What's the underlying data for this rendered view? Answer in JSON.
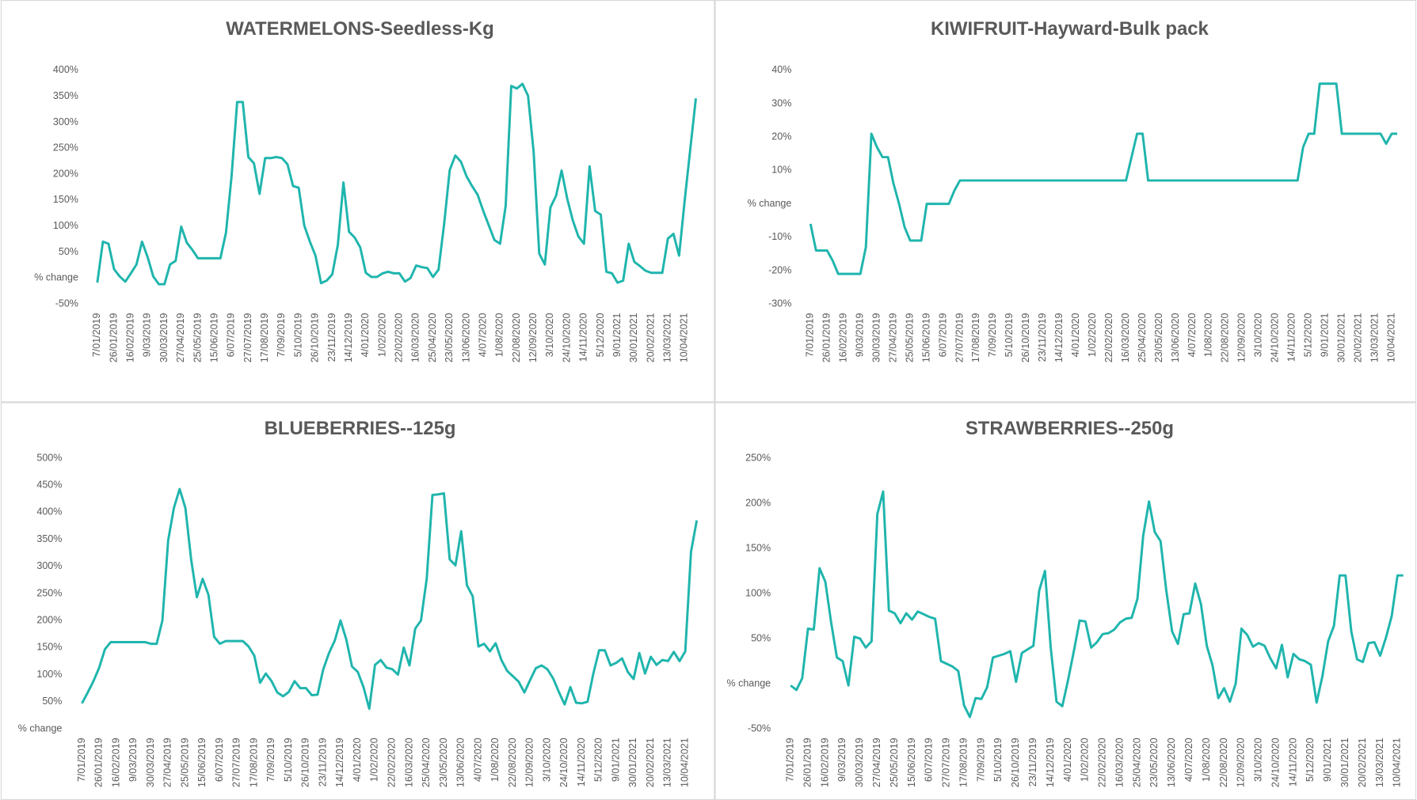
{
  "chart_data": [
    {
      "type": "line",
      "title": "WATERMELONS-Seedless-Kg",
      "grid": false,
      "color": "#1fb5ad",
      "categories": [
        "7/01/2019",
        null,
        null,
        "26/01/2019",
        null,
        null,
        "16/02/2019",
        null,
        null,
        "9/03/2019",
        null,
        null,
        "30/03/2019",
        null,
        null,
        "27/04/2019",
        null,
        null,
        "25/05/2019",
        null,
        null,
        "15/06/2019",
        null,
        null,
        "6/07/2019",
        null,
        null,
        "27/07/2019",
        null,
        null,
        "17/08/2019",
        null,
        null,
        "7/09/2019",
        null,
        null,
        "5/10/2019",
        null,
        null,
        "26/10/2019",
        null,
        null,
        "23/11/2019",
        null,
        null,
        "14/12/2019",
        null,
        null,
        "4/01/2020",
        null,
        null,
        "1/02/2020",
        null,
        null,
        "22/02/2020",
        null,
        null,
        "16/03/2020",
        null,
        null,
        "25/04/2020",
        null,
        null,
        "23/05/2020",
        null,
        null,
        "13/06/2020",
        null,
        null,
        "4/07/2020",
        null,
        null,
        "1/08/2020",
        null,
        null,
        "22/08/2020",
        null,
        null,
        "12/09/2020",
        null,
        null,
        "3/10/2020",
        null,
        null,
        "24/10/2020",
        null,
        null,
        "14/11/2020",
        null,
        null,
        "5/12/2020",
        null,
        null,
        "9/01/2021",
        null,
        null,
        "30/01/2021",
        null,
        null,
        "20/02/2021",
        null,
        null,
        "13/03/2021",
        null,
        null,
        "10/04/2021",
        null,
        null
      ],
      "values": [
        -9,
        70,
        66,
        17,
        3,
        -7,
        9,
        26,
        70,
        40,
        3,
        -12,
        -12,
        26,
        33,
        99,
        68,
        54,
        38,
        38,
        38,
        38,
        38,
        87,
        196,
        339,
        339,
        233,
        221,
        162,
        231,
        231,
        233,
        231,
        219,
        177,
        174,
        101,
        70,
        43,
        -10,
        -5,
        7,
        64,
        184,
        89,
        78,
        59,
        10,
        2,
        2,
        9,
        12,
        9,
        9,
        -7,
        0,
        24,
        21,
        19,
        2,
        16,
        104,
        208,
        236,
        224,
        196,
        177,
        160,
        129,
        101,
        73,
        66,
        139,
        370,
        365,
        374,
        351,
        243,
        47,
        26,
        136,
        158,
        207,
        153,
        111,
        80,
        66,
        215,
        129,
        122,
        12,
        9,
        -9,
        -5,
        66,
        31,
        23,
        14,
        10,
        10,
        10,
        76,
        85,
        43,
        149,
        248,
        346
      ],
      "ylim": [
        -50,
        400
      ],
      "yticks": [
        {
          "value": -50,
          "label": "-50%"
        },
        {
          "value": 0,
          "label": "% change"
        },
        {
          "value": 50,
          "label": "50%"
        },
        {
          "value": 100,
          "label": "100%"
        },
        {
          "value": 150,
          "label": "150%"
        },
        {
          "value": 200,
          "label": "200%"
        },
        {
          "value": 250,
          "label": "250%"
        },
        {
          "value": 300,
          "label": "300%"
        },
        {
          "value": 350,
          "label": "350%"
        },
        {
          "value": 400,
          "label": "400%"
        }
      ]
    },
    {
      "type": "line",
      "title": "KIWIFRUIT-Hayward-Bulk pack",
      "grid": false,
      "color": "#1fb5ad",
      "categories": [
        "7/01/2019",
        null,
        null,
        "26/01/2019",
        null,
        null,
        "16/02/2019",
        null,
        null,
        "9/03/2019",
        null,
        null,
        "30/03/2019",
        null,
        null,
        "27/04/2019",
        null,
        null,
        "25/05/2019",
        null,
        null,
        "15/06/2019",
        null,
        null,
        "6/07/2019",
        null,
        null,
        "27/07/2019",
        null,
        null,
        "17/08/2019",
        null,
        null,
        "7/09/2019",
        null,
        null,
        "5/10/2019",
        null,
        null,
        "26/10/2019",
        null,
        null,
        "23/11/2019",
        null,
        null,
        "14/12/2019",
        null,
        null,
        "4/01/2020",
        null,
        null,
        "1/02/2020",
        null,
        null,
        "22/02/2020",
        null,
        null,
        "16/03/2020",
        null,
        null,
        "25/04/2020",
        null,
        null,
        "23/05/2020",
        null,
        null,
        "13/06/2020",
        null,
        null,
        "4/07/2020",
        null,
        null,
        "1/08/2020",
        null,
        null,
        "22/08/2020",
        null,
        null,
        "12/09/2020",
        null,
        null,
        "3/10/2020",
        null,
        null,
        "24/10/2020",
        null,
        null,
        "14/11/2020",
        null,
        null,
        "5/12/2020",
        null,
        null,
        "9/01/2021",
        null,
        null,
        "30/01/2021",
        null,
        null,
        "20/02/2021",
        null,
        null,
        "13/03/2021",
        null,
        null,
        "10/04/2021",
        null,
        null
      ],
      "values": [
        -6,
        -14,
        -14,
        -14,
        -17,
        -21,
        -21,
        -21,
        -21,
        -21,
        -13,
        21,
        17,
        14,
        14,
        6,
        0,
        -7,
        -11,
        -11,
        -11,
        0,
        0,
        0,
        0,
        0,
        4,
        7,
        7,
        7,
        7,
        7,
        7,
        7,
        7,
        7,
        7,
        7,
        7,
        7,
        7,
        7,
        7,
        7,
        7,
        7,
        7,
        7,
        7,
        7,
        7,
        7,
        7,
        7,
        7,
        7,
        7,
        7,
        14,
        21,
        21,
        7,
        7,
        7,
        7,
        7,
        7,
        7,
        7,
        7,
        7,
        7,
        7,
        7,
        7,
        7,
        7,
        7,
        7,
        7,
        7,
        7,
        7,
        7,
        7,
        7,
        7,
        7,
        7,
        17,
        21,
        21,
        36,
        36,
        36,
        36,
        21,
        21,
        21,
        21,
        21,
        21,
        21,
        21,
        18,
        21,
        21,
        null
      ],
      "ylim": [
        -30,
        40
      ],
      "yticks": [
        {
          "value": -30,
          "label": "-30%"
        },
        {
          "value": -20,
          "label": "-20%"
        },
        {
          "value": -10,
          "label": "-10%"
        },
        {
          "value": 0,
          "label": "% change"
        },
        {
          "value": 10,
          "label": "10%"
        },
        {
          "value": 20,
          "label": "20%"
        },
        {
          "value": 30,
          "label": "30%"
        },
        {
          "value": 40,
          "label": "40%"
        }
      ]
    },
    {
      "type": "line",
      "title": "BLUEBERRIES--125g",
      "grid": false,
      "color": "#1fb5ad",
      "categories": [
        "7/01/2019",
        null,
        null,
        "26/01/2019",
        null,
        null,
        "16/02/2019",
        null,
        null,
        "9/03/2019",
        null,
        null,
        "30/03/2019",
        null,
        null,
        "27/04/2019",
        null,
        null,
        "25/05/2019",
        null,
        null,
        "15/06/2019",
        null,
        null,
        "6/07/2019",
        null,
        null,
        "27/07/2019",
        null,
        null,
        "17/08/2019",
        null,
        null,
        "7/09/2019",
        null,
        null,
        "5/10/2019",
        null,
        null,
        "26/10/2019",
        null,
        null,
        "23/11/2019",
        null,
        null,
        "14/12/2019",
        null,
        null,
        "4/01/2020",
        null,
        null,
        "1/02/2020",
        null,
        null,
        "22/02/2020",
        null,
        null,
        "16/03/2020",
        null,
        null,
        "25/04/2020",
        null,
        null,
        "23/05/2020",
        null,
        null,
        "13/06/2020",
        null,
        null,
        "4/07/2020",
        null,
        null,
        "1/08/2020",
        null,
        null,
        "22/08/2020",
        null,
        null,
        "12/09/2020",
        null,
        null,
        "3/10/2020",
        null,
        null,
        "24/10/2020",
        null,
        null,
        "14/11/2020",
        null,
        null,
        "5/12/2020",
        null,
        null,
        "9/01/2021",
        null,
        null,
        "30/01/2021",
        null,
        null,
        "20/02/2021",
        null,
        null,
        "13/03/2021",
        null,
        null,
        "10/04/2021",
        null,
        null
      ],
      "values": [
        47,
        67,
        88,
        113,
        147,
        160,
        160,
        160,
        160,
        160,
        160,
        160,
        157,
        157,
        200,
        348,
        408,
        443,
        408,
        313,
        243,
        277,
        248,
        170,
        157,
        162,
        162,
        162,
        162,
        152,
        135,
        85,
        102,
        88,
        67,
        60,
        68,
        88,
        75,
        75,
        62,
        63,
        110,
        140,
        163,
        200,
        165,
        115,
        105,
        77,
        37,
        118,
        127,
        113,
        110,
        100,
        150,
        117,
        185,
        200,
        277,
        432,
        433,
        435,
        313,
        302,
        365,
        265,
        245,
        152,
        157,
        143,
        158,
        127,
        107,
        97,
        87,
        67,
        90,
        112,
        117,
        110,
        93,
        68,
        45,
        77,
        48,
        47,
        50,
        102,
        145,
        145,
        117,
        122,
        130,
        105,
        92,
        140,
        102,
        133,
        118,
        127,
        125,
        142,
        125,
        143,
        327,
        385
      ],
      "ylim": [
        0,
        500
      ],
      "yticks": [
        {
          "value": 0,
          "label": "% change"
        },
        {
          "value": 50,
          "label": "50%"
        },
        {
          "value": 100,
          "label": "100%"
        },
        {
          "value": 150,
          "label": "150%"
        },
        {
          "value": 200,
          "label": "200%"
        },
        {
          "value": 250,
          "label": "250%"
        },
        {
          "value": 300,
          "label": "300%"
        },
        {
          "value": 350,
          "label": "350%"
        },
        {
          "value": 400,
          "label": "400%"
        },
        {
          "value": 450,
          "label": "450%"
        },
        {
          "value": 500,
          "label": "500%"
        }
      ]
    },
    {
      "type": "line",
      "title": "STRAWBERRIES--250g",
      "grid": false,
      "color": "#1fb5ad",
      "categories": [
        "7/01/2019",
        null,
        null,
        "26/01/2019",
        null,
        null,
        "16/02/2019",
        null,
        null,
        "9/03/2019",
        null,
        null,
        "30/03/2019",
        null,
        null,
        "27/04/2019",
        null,
        null,
        "25/05/2019",
        null,
        null,
        "15/06/2019",
        null,
        null,
        "6/07/2019",
        null,
        null,
        "27/07/2019",
        null,
        null,
        "17/08/2019",
        null,
        null,
        "7/09/2019",
        null,
        null,
        "5/10/2019",
        null,
        null,
        "26/10/2019",
        null,
        null,
        "23/11/2019",
        null,
        null,
        "14/12/2019",
        null,
        null,
        "4/01/2020",
        null,
        null,
        "1/02/2020",
        null,
        null,
        "22/02/2020",
        null,
        null,
        "16/03/2020",
        null,
        null,
        "25/04/2020",
        null,
        null,
        "23/05/2020",
        null,
        null,
        "13/06/2020",
        null,
        null,
        "4/07/2020",
        null,
        null,
        "1/08/2020",
        null,
        null,
        "22/08/2020",
        null,
        null,
        "12/09/2020",
        null,
        null,
        "3/10/2020",
        null,
        null,
        "24/10/2020",
        null,
        null,
        "14/11/2020",
        null,
        null,
        "5/12/2020",
        null,
        null,
        "9/01/2021",
        null,
        null,
        "30/01/2021",
        null,
        null,
        "20/02/2021",
        null,
        null,
        "13/03/2021",
        null,
        null,
        "10/04/2021",
        null,
        null
      ],
      "values": [
        -2,
        -7,
        6,
        61,
        60,
        128,
        113,
        68,
        29,
        25,
        -2,
        52,
        50,
        40,
        47,
        188,
        213,
        81,
        78,
        67,
        78,
        71,
        80,
        77,
        74,
        72,
        25,
        22,
        19,
        14,
        -24,
        -37,
        -16,
        -17,
        -4,
        29,
        31,
        33,
        36,
        2,
        34,
        38,
        42,
        103,
        125,
        40,
        -20,
        -25,
        4,
        36,
        70,
        69,
        40,
        46,
        55,
        56,
        60,
        68,
        72,
        73,
        94,
        164,
        202,
        168,
        158,
        103,
        58,
        44,
        77,
        78,
        111,
        88,
        42,
        20,
        -16,
        -5,
        -20,
        0,
        61,
        54,
        41,
        45,
        42,
        28,
        17,
        43,
        7,
        33,
        27,
        25,
        21,
        -21,
        8,
        47,
        64,
        120,
        120,
        58,
        27,
        24,
        45,
        46,
        31,
        51,
        75,
        120,
        120,
        null
      ],
      "ylim": [
        -50,
        250
      ],
      "yticks": [
        {
          "value": -50,
          "label": "-50%"
        },
        {
          "value": 0,
          "label": "% change"
        },
        {
          "value": 50,
          "label": "50%"
        },
        {
          "value": 100,
          "label": "100%"
        },
        {
          "value": 150,
          "label": "150%"
        },
        {
          "value": 200,
          "label": "200%"
        },
        {
          "value": 250,
          "label": "250%"
        }
      ]
    }
  ]
}
